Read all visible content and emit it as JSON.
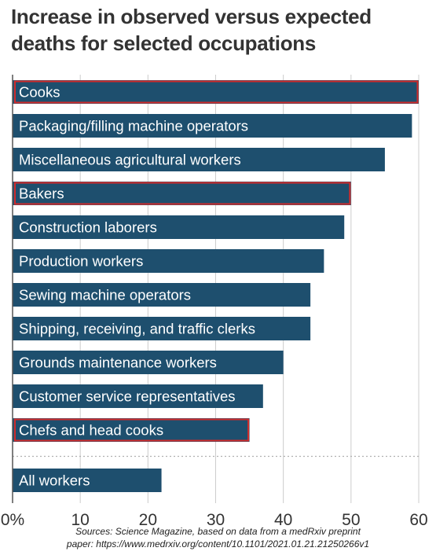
{
  "title_lines": [
    "Increase in observed versus expected",
    "deaths for selected occupations"
  ],
  "source_lines": [
    "Sources: Science Magazine, based on data from a medRxiv preprint",
    "paper: https://www.medrxiv.org/content/10.1101/2021.01.21.21250266v1"
  ],
  "colors": {
    "bar": "#1e4f6e",
    "highlight": "#d22b2b",
    "bar_text": "#ffffff",
    "axis_text": "#333333",
    "grid": "#cccccc"
  },
  "chart_data": {
    "type": "bar",
    "orientation": "horizontal",
    "categories": [
      "Cooks",
      "Packaging/filling machine operators",
      "Miscellaneous agricultural workers",
      "Bakers",
      "Construction laborers",
      "Production workers",
      "Sewing machine operators",
      "Shipping, receiving, and traffic clerks",
      "Grounds maintenance workers",
      "Customer service representatives",
      "Chefs and head cooks",
      "All workers"
    ],
    "values": [
      60,
      59,
      55,
      50,
      49,
      46,
      44,
      44,
      40,
      37,
      35,
      22
    ],
    "highlighted": [
      "Cooks",
      "Bakers",
      "Chefs and head cooks"
    ],
    "separator_before": "All workers",
    "x_ticks": [
      0,
      10,
      20,
      30,
      40,
      50,
      60
    ],
    "x_tick_labels": [
      "0%",
      "10",
      "20",
      "30",
      "40",
      "50",
      "60"
    ],
    "xlim": [
      0,
      60
    ],
    "grid": true
  }
}
